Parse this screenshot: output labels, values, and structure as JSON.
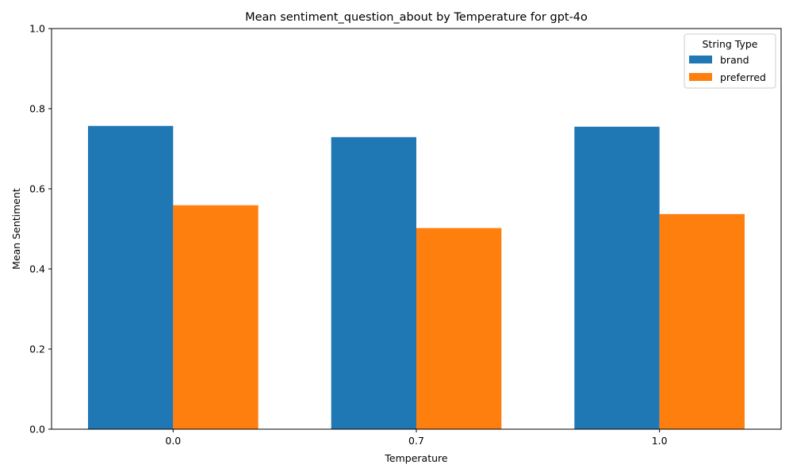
{
  "chart_data": {
    "type": "bar",
    "title": "Mean sentiment_question_about by Temperature for gpt-4o",
    "xlabel": "Temperature",
    "ylabel": "Mean Sentiment",
    "categories": [
      "0.0",
      "0.7",
      "1.0"
    ],
    "series": [
      {
        "name": "brand",
        "values": [
          0.757,
          0.729,
          0.755
        ],
        "color": "#1f77b4"
      },
      {
        "name": "preferred",
        "values": [
          0.559,
          0.502,
          0.537
        ],
        "color": "#ff7f0e"
      }
    ],
    "ylim": [
      0,
      1.0
    ],
    "yticks": [
      "0.0",
      "0.2",
      "0.4",
      "0.6",
      "0.8",
      "1.0"
    ],
    "grid": false,
    "legend": {
      "title": "String Type",
      "position": "top-right"
    }
  }
}
